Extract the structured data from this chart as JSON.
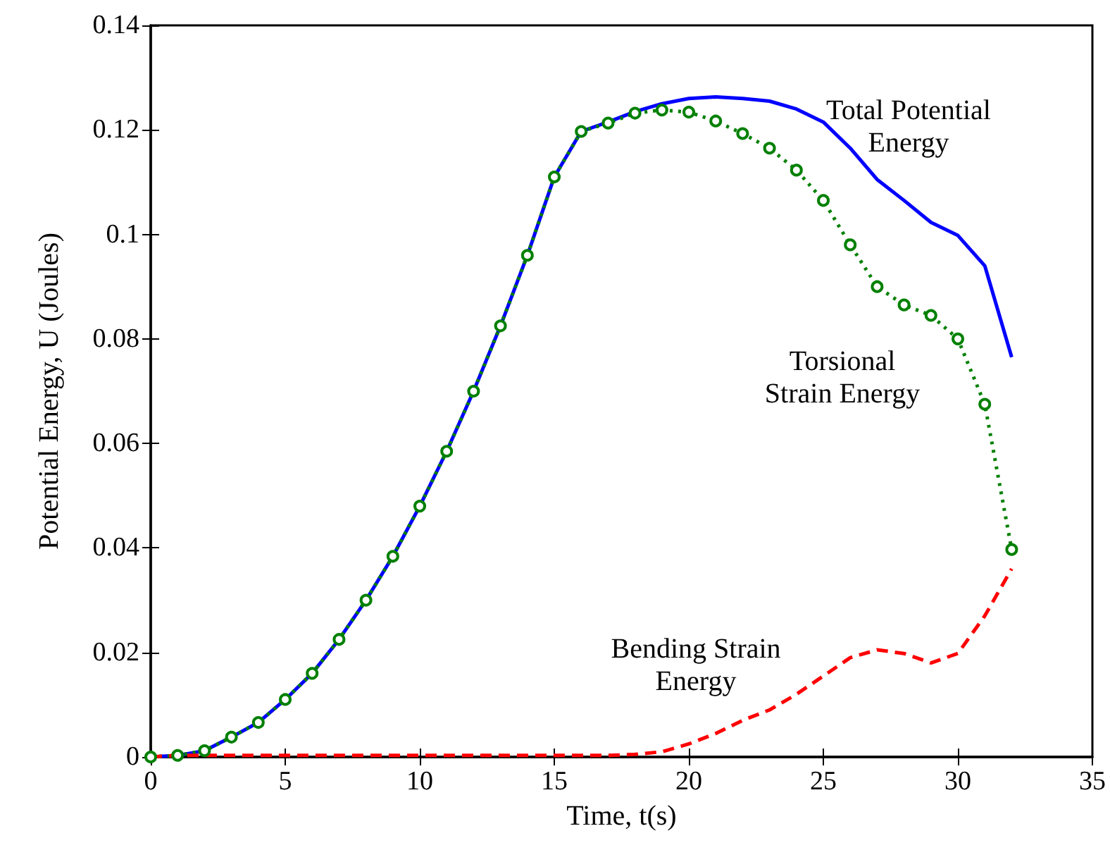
{
  "chart_data": {
    "type": "line",
    "xlabel": "Time, t(s)",
    "ylabel": "Potential Energy, U (Joules)",
    "x": [
      0,
      1,
      2,
      3,
      4,
      5,
      6,
      7,
      8,
      9,
      10,
      11,
      12,
      13,
      14,
      15,
      16,
      17,
      18,
      19,
      20,
      21,
      22,
      23,
      24,
      25,
      26,
      27,
      28,
      29,
      30,
      31,
      32
    ],
    "xlim": [
      0,
      35
    ],
    "xticks": [
      0,
      5,
      10,
      15,
      20,
      25,
      30,
      35
    ],
    "ylim": [
      0,
      0.14
    ],
    "yticks": [
      0,
      0.02,
      0.04,
      0.06,
      0.08,
      0.1,
      0.12,
      0.14
    ],
    "grid": false,
    "series": [
      {
        "name": "Total Potential\nEnergy",
        "color": "#0000ff",
        "line_style": "solid",
        "marker": "none",
        "values": [
          0,
          0.0003,
          0.0012,
          0.0038,
          0.0066,
          0.011,
          0.016,
          0.0225,
          0.03,
          0.0384,
          0.048,
          0.0585,
          0.07,
          0.0825,
          0.096,
          0.111,
          0.1197,
          0.1215,
          0.1235,
          0.125,
          0.126,
          0.1263,
          0.126,
          0.1255,
          0.124,
          0.1215,
          0.1165,
          0.1105,
          0.1065,
          0.1023,
          0.0998,
          0.094,
          0.0765
        ]
      },
      {
        "name": "Torsional\nStrain Energy",
        "color": "#008000",
        "line_style": "dotted",
        "marker": "circle",
        "values": [
          0,
          0.0003,
          0.0012,
          0.0038,
          0.0066,
          0.011,
          0.016,
          0.0225,
          0.03,
          0.0384,
          0.048,
          0.0585,
          0.07,
          0.0825,
          0.096,
          0.111,
          0.1197,
          0.1213,
          0.1232,
          0.1238,
          0.1234,
          0.1217,
          0.1193,
          0.1165,
          0.1123,
          0.1065,
          0.098,
          0.09,
          0.0865,
          0.0845,
          0.08,
          0.0675,
          0.0397
        ]
      },
      {
        "name": "Bending Strain\nEnergy",
        "color": "#ff0000",
        "line_style": "dashed",
        "marker": "none",
        "values": [
          0,
          0.0003,
          0.0003,
          0.0003,
          0.0003,
          0.0003,
          0.0003,
          0.0003,
          0.0003,
          0.0003,
          0.0003,
          0.0003,
          0.0003,
          0.0003,
          0.0003,
          0.0003,
          0.0003,
          0.0003,
          0.0005,
          0.001,
          0.0025,
          0.0045,
          0.007,
          0.009,
          0.012,
          0.0155,
          0.019,
          0.0205,
          0.0198,
          0.018,
          0.0198,
          0.027,
          0.036
        ]
      }
    ]
  }
}
